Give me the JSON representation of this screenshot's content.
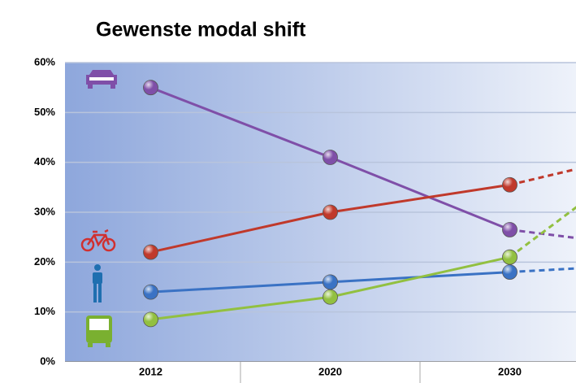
{
  "chart_data": {
    "type": "line",
    "title": "Gewenste modal shift",
    "categories": [
      "2012",
      "2020",
      "2030",
      null
    ],
    "series": [
      {
        "color": "#7f4fa8",
        "values": [
          55,
          41,
          26.5,
          22
        ]
      },
      {
        "color": "#c0392b",
        "values": [
          22,
          30,
          35.5,
          44
        ]
      },
      {
        "color": "#3a72c4",
        "values": [
          14,
          16,
          18,
          20
        ]
      },
      {
        "color": "#92c040",
        "values": [
          8.5,
          13,
          21,
          48
        ]
      }
    ],
    "ylim": [
      0,
      60
    ],
    "yticks": [
      {
        "value": 0,
        "label": "0%"
      },
      {
        "value": 10,
        "label": "10%"
      },
      {
        "value": 20,
        "label": "20%"
      },
      {
        "value": 30,
        "label": "30%"
      },
      {
        "value": 40,
        "label": "40%"
      },
      {
        "value": 50,
        "label": "50%"
      },
      {
        "value": 60,
        "label": "60%"
      }
    ],
    "grid": true
  }
}
